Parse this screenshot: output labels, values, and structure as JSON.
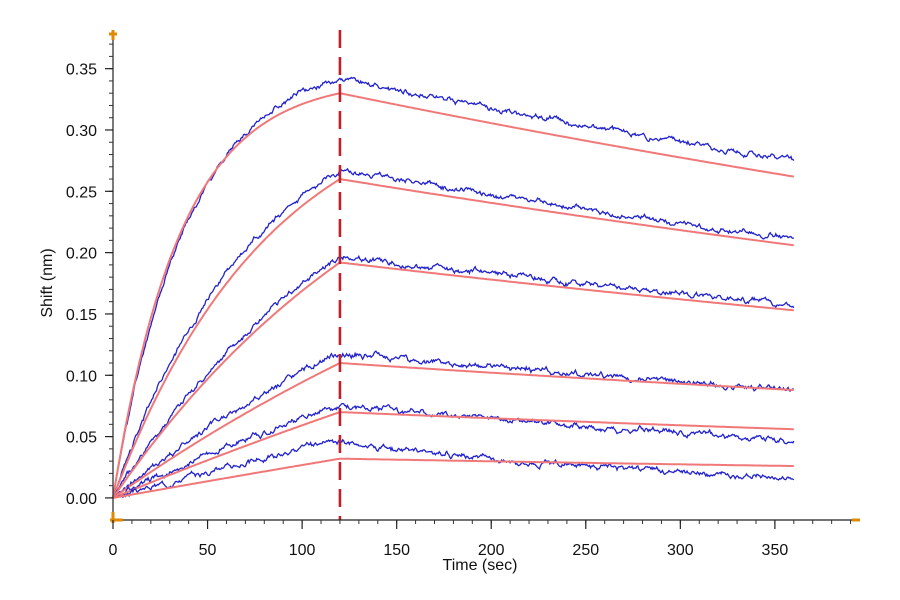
{
  "chart_data": {
    "type": "line",
    "title": "",
    "xlabel": "Time (sec)",
    "ylabel": "Shift (nm)",
    "xlim": [
      0,
      395
    ],
    "ylim": [
      -0.018,
      0.375
    ],
    "x_ticks": [
      0,
      50,
      100,
      150,
      200,
      250,
      300,
      350
    ],
    "y_ticks": [
      0.0,
      0.05,
      0.1,
      0.15,
      0.2,
      0.25,
      0.3,
      0.35
    ],
    "y_tick_labels": [
      "0.00",
      "0.05",
      "0.10",
      "0.15",
      "0.20",
      "0.25",
      "0.30",
      "0.35"
    ],
    "x_tick_labels": [
      "0",
      "50",
      "100",
      "150",
      "200",
      "250",
      "300",
      "350"
    ],
    "x_minor_step": 10,
    "y_minor_step": 0.01,
    "association_end_time": 120,
    "end_time": 360,
    "annotations": [
      {
        "type": "vertical-dashed-line",
        "x": 120,
        "color": "#c0202a",
        "label": "association / dissociation boundary"
      }
    ],
    "colors": {
      "data": "#2222cc",
      "fit": "#f07878",
      "axis": "#e08a00",
      "marker": "#c0202a"
    },
    "series": [
      {
        "name": "curve 1 data",
        "kind": "data",
        "k_on": 0.025,
        "peak": 0.342,
        "end_value": 0.275,
        "noise": 0.0028,
        "seed": 11
      },
      {
        "name": "curve 1 fit",
        "kind": "fit",
        "k_on": 0.028,
        "peak": 0.33,
        "end_value": 0.262
      },
      {
        "name": "curve 2 data",
        "kind": "data",
        "k_on": 0.013,
        "peak": 0.268,
        "end_value": 0.211,
        "noise": 0.003,
        "seed": 23
      },
      {
        "name": "curve 2 fit",
        "kind": "fit",
        "k_on": 0.012,
        "peak": 0.26,
        "end_value": 0.206
      },
      {
        "name": "curve 3 data",
        "kind": "data",
        "k_on": 0.007,
        "peak": 0.197,
        "end_value": 0.157,
        "noise": 0.003,
        "seed": 37
      },
      {
        "name": "curve 3 fit",
        "kind": "fit",
        "k_on": 0.006,
        "peak": 0.192,
        "end_value": 0.153
      },
      {
        "name": "curve 4 data",
        "kind": "data",
        "k_on": 0.004,
        "peak": 0.118,
        "end_value": 0.088,
        "noise": 0.0032,
        "seed": 41
      },
      {
        "name": "curve 4 fit",
        "kind": "fit",
        "k_on": 0.003,
        "peak": 0.11,
        "end_value": 0.088
      },
      {
        "name": "curve 5 data",
        "kind": "data",
        "k_on": 0.003,
        "peak": 0.076,
        "end_value": 0.047,
        "noise": 0.0032,
        "seed": 53
      },
      {
        "name": "curve 5 fit",
        "kind": "fit",
        "k_on": 0.0015,
        "peak": 0.07,
        "end_value": 0.056
      },
      {
        "name": "curve 6 data",
        "kind": "data",
        "k_on": 0.003,
        "peak": 0.046,
        "end_value": 0.016,
        "noise": 0.003,
        "seed": 67
      },
      {
        "name": "curve 6 fit",
        "kind": "fit",
        "k_on": 0.0005,
        "peak": 0.032,
        "end_value": 0.026
      }
    ]
  }
}
